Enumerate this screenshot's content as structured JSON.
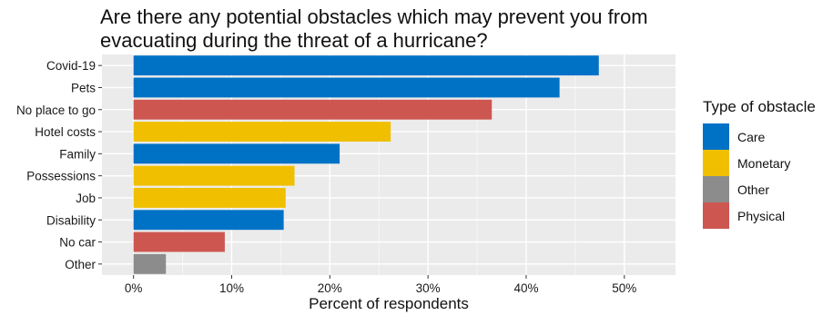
{
  "chart_data": {
    "type": "bar",
    "orientation": "horizontal",
    "title": "Are there any potential obstacles which may prevent you from evacuating during the threat of a hurricane?",
    "xlabel": "Percent of respondents",
    "ylabel": "",
    "xlim": [
      0,
      0.52
    ],
    "xticks": [
      0,
      0.1,
      0.2,
      0.3,
      0.4,
      0.5
    ],
    "xtick_labels": [
      "0%",
      "10%",
      "20%",
      "30%",
      "40%",
      "50%"
    ],
    "grid": true,
    "legend": {
      "title": "Type of obstacle",
      "position": "right",
      "entries": [
        {
          "label": "Care",
          "color": "#0072C6"
        },
        {
          "label": "Monetary",
          "color": "#F0C000"
        },
        {
          "label": "Other",
          "color": "#8C8C8C"
        },
        {
          "label": "Physical",
          "color": "#CD5750"
        }
      ]
    },
    "bars": [
      {
        "category": "Covid-19",
        "value": 0.474,
        "type": "Care"
      },
      {
        "category": "Pets",
        "value": 0.434,
        "type": "Care"
      },
      {
        "category": "No place to go",
        "value": 0.365,
        "type": "Physical"
      },
      {
        "category": "Hotel costs",
        "value": 0.262,
        "type": "Monetary"
      },
      {
        "category": "Family",
        "value": 0.21,
        "type": "Care"
      },
      {
        "category": "Possessions",
        "value": 0.164,
        "type": "Monetary"
      },
      {
        "category": "Job",
        "value": 0.155,
        "type": "Monetary"
      },
      {
        "category": "Disability",
        "value": 0.153,
        "type": "Care"
      },
      {
        "category": "No car",
        "value": 0.093,
        "type": "Physical"
      },
      {
        "category": "Other",
        "value": 0.033,
        "type": "Other"
      }
    ]
  }
}
